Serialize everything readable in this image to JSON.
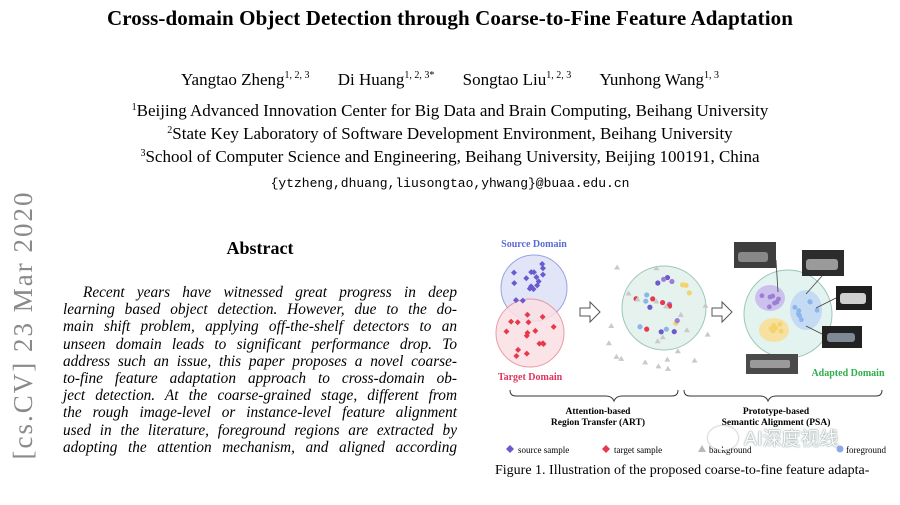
{
  "paper": {
    "title": "Cross-domain Object Detection through Coarse-to-Fine Feature Adaptation",
    "authors": [
      {
        "name": "Yangtao Zheng",
        "sup": "1, 2, 3"
      },
      {
        "name": "Di Huang",
        "sup": "1, 2, 3*"
      },
      {
        "name": "Songtao Liu",
        "sup": "1, 2, 3"
      },
      {
        "name": "Yunhong Wang",
        "sup": "1, 3"
      }
    ],
    "affiliations": [
      {
        "sup": "1",
        "text": "Beijing Advanced Innovation Center for Big Data and Brain Computing, Beihang University"
      },
      {
        "sup": "2",
        "text": "State Key Laboratory of Software Development Environment, Beihang University"
      },
      {
        "sup": "3",
        "text": "School of Computer Science and Engineering, Beihang University, Beijing 100191, China"
      }
    ],
    "email": "{ytzheng,dhuang,liusongtao,yhwang}@buaa.edu.cn",
    "arxiv_stamp": "[cs.CV]   23 Mar 2020",
    "abstract_heading": "Abstract",
    "abstract_lines": [
      "Recent years have witnessed great progress in deep",
      "learning based object detection.  However, due to the do-",
      "main shift problem, applying off-the-shelf detectors to an",
      "unseen domain leads to significant performance drop.  To",
      "address such an issue, this paper proposes a novel coarse-",
      "to-fine feature adaptation approach to cross-domain ob-",
      "ject detection.  At the coarse-grained stage, different from",
      "the rough image-level or instance-level feature alignment",
      "used in the literature, foreground regions are extracted by",
      "adopting the attention mechanism, and aligned according"
    ],
    "figure": {
      "source_domain_label": "Source Domain",
      "target_domain_label": "Target Domain",
      "adapted_domain_label": "Adapted Domain",
      "art_label_line1": "Attention-based",
      "art_label_line2": "Region Transfer (ART)",
      "psa_label_line1": "Prototype-based",
      "psa_label_line2": "Semantic Alignment (PSA)",
      "legend_source": "source sample",
      "legend_target": "target sample",
      "legend_background": "background",
      "legend_foreground": "foreground",
      "colors": {
        "source": "#6a5acd",
        "target": "#e8394a",
        "source_label": "#5b6bd6",
        "target_label": "#e0345a",
        "adapted_label": "#2fae4c",
        "cluster_purple": "#9b7fd4",
        "cluster_yellow": "#f3d36b",
        "cluster_blue": "#8bb6ec"
      }
    },
    "caption": "Figure 1. Illustration of the proposed coarse-to-fine feature adapta-",
    "watermark_text": "AI深度视线"
  }
}
